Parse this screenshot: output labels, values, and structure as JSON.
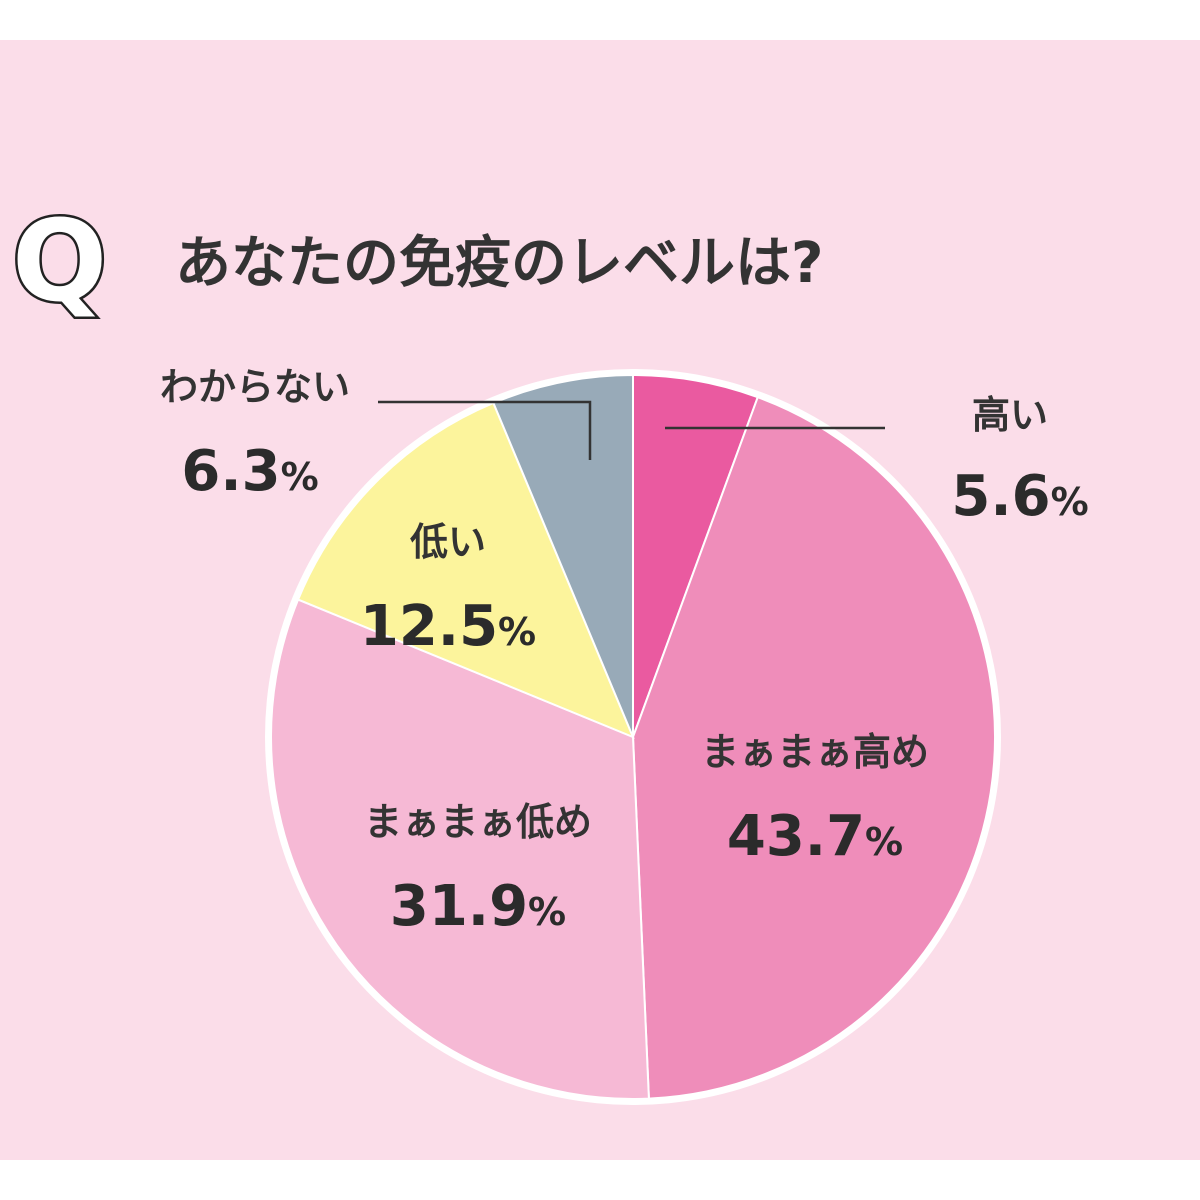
{
  "chart_data": {
    "type": "pie",
    "title_prefix": "Q",
    "title": "あなたの免疫のレベルは?",
    "unit": "%",
    "slices": [
      {
        "label": "高い",
        "value": 5.6,
        "value_text": "5.6",
        "color": "#ea5aa0"
      },
      {
        "label": "まぁまぁ高め",
        "value": 43.7,
        "value_text": "43.7",
        "color": "#ef8dba"
      },
      {
        "label": "まぁまぁ低め",
        "value": 31.9,
        "value_text": "31.9",
        "color": "#f6b9d5"
      },
      {
        "label": "低い",
        "value": 12.5,
        "value_text": "12.5",
        "color": "#fcf49c"
      },
      {
        "label": "わからない",
        "value": 6.3,
        "value_text": "6.3",
        "color": "#98aab8"
      }
    ]
  },
  "colors": {
    "background": "#fbdde9",
    "slice_border": "#ffffff",
    "text": "#2b2b2b",
    "leader_line": "#333333"
  }
}
